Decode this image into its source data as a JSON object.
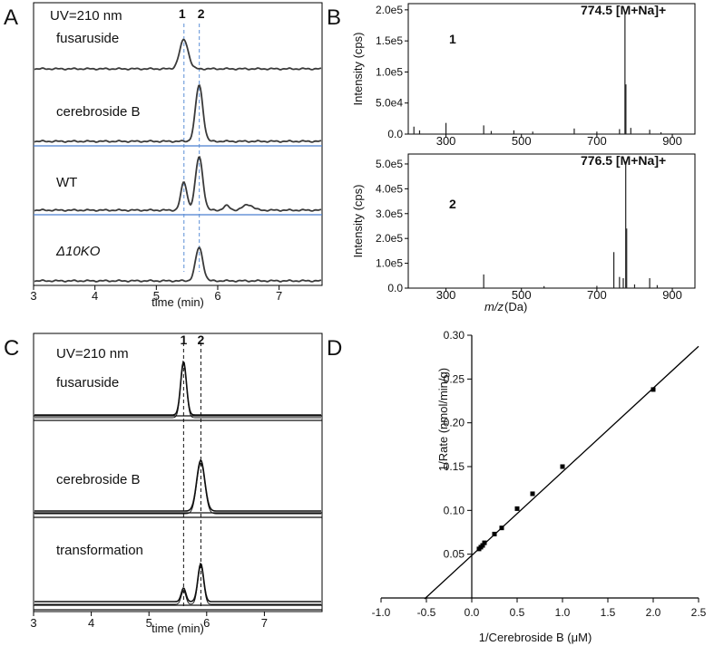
{
  "panels": {
    "A": {
      "label": "A",
      "header": "UV=210 nm",
      "peak_labels": [
        "1",
        "2"
      ],
      "peak_times": [
        5.45,
        5.7
      ],
      "traces": [
        {
          "name": "fusaruside",
          "italic": false,
          "peaks": [
            {
              "t": 5.45,
              "h": 0.85,
              "w": 0.07
            }
          ]
        },
        {
          "name": "cerebroside B",
          "italic": false,
          "peaks": [
            {
              "t": 5.7,
              "h": 1.0,
              "w": 0.06
            }
          ]
        },
        {
          "name": "WT",
          "italic": false,
          "peaks": [
            {
              "t": 5.45,
              "h": 0.5,
              "w": 0.05
            },
            {
              "t": 5.7,
              "h": 0.95,
              "w": 0.06
            },
            {
              "t": 6.15,
              "h": 0.08,
              "w": 0.05
            },
            {
              "t": 6.5,
              "h": 0.1,
              "w": 0.08
            }
          ]
        },
        {
          "name": "Δ10KO",
          "italic": true,
          "peaks": [
            {
              "t": 5.7,
              "h": 0.8,
              "w": 0.06
            }
          ]
        }
      ],
      "x_ticks": [
        "3",
        "4",
        "5",
        "6",
        "7"
      ],
      "xlim": [
        3,
        7.7
      ],
      "xlabel": "time (min)"
    },
    "B": {
      "label": "B",
      "spectra": [
        {
          "id": "1",
          "annotation": "774.5 [M+Na]+",
          "ylabel": "Intensity (cps)",
          "y_ticks": [
            "0.0",
            "5.0e4",
            "1.0e5",
            "1.5e5",
            "2.0e5"
          ],
          "ylim": [
            0,
            210000
          ],
          "peaks": [
            [
              215,
              12000
            ],
            [
              230,
              6000
            ],
            [
              300,
              18000
            ],
            [
              400,
              14000
            ],
            [
              420,
              5000
            ],
            [
              480,
              6000
            ],
            [
              530,
              4000
            ],
            [
              640,
              9000
            ],
            [
              700,
              4000
            ],
            [
              760,
              8000
            ],
            [
              774.5,
              195000
            ],
            [
              777,
              80000
            ],
            [
              790,
              10000
            ],
            [
              840,
              7000
            ],
            [
              870,
              3000
            ]
          ]
        },
        {
          "id": "2",
          "annotation": "776.5 [M+Na]+",
          "ylabel": "Intensity (cps)",
          "y_ticks": [
            "0.0",
            "1.0e5",
            "2.0e5",
            "3.0e5",
            "4.0e5",
            "5.0e5"
          ],
          "ylim": [
            0,
            540000
          ],
          "peaks": [
            [
              400,
              55000
            ],
            [
              560,
              8000
            ],
            [
              700,
              9000
            ],
            [
              745,
              145000
            ],
            [
              760,
              45000
            ],
            [
              770,
              40000
            ],
            [
              776.5,
              510000
            ],
            [
              779,
              240000
            ],
            [
              800,
              15000
            ],
            [
              840,
              40000
            ],
            [
              860,
              12000
            ]
          ]
        }
      ],
      "x_ticks": [
        "300",
        "500",
        "700",
        "900"
      ],
      "xlim": [
        200,
        960
      ],
      "xlabel_italic": "m/z",
      "xlabel_unit": " (Da)"
    },
    "C": {
      "label": "C",
      "header": "UV=210 nm",
      "peak_labels": [
        "1",
        "2"
      ],
      "peak_times": [
        5.6,
        5.9
      ],
      "traces": [
        {
          "name": "fusaruside",
          "peaks": [
            {
              "t": 5.6,
              "h": 0.95,
              "w": 0.05
            }
          ]
        },
        {
          "name": "cerebroside B",
          "peaks": [
            {
              "t": 5.9,
              "h": 0.8,
              "w": 0.07
            }
          ]
        },
        {
          "name": "transformation",
          "peaks": [
            {
              "t": 5.6,
              "h": 0.25,
              "w": 0.04
            },
            {
              "t": 5.9,
              "h": 0.7,
              "w": 0.05
            }
          ]
        }
      ],
      "x_ticks": [
        "3",
        "4",
        "5",
        "6",
        "7"
      ],
      "xlim": [
        3,
        8
      ],
      "xlabel": "time (min)"
    },
    "D": {
      "label": "D",
      "ylabel": "1/Rate (nmol/min/g)",
      "xlabel_pre": "1/Cerebroside B (",
      "xlabel_unit": "μM",
      "xlabel_post": ")",
      "x_ticks": [
        "-1.0",
        "-0.5",
        "0.0",
        "0.5",
        "1.0",
        "1.5",
        "2.0",
        "2.5"
      ],
      "y_ticks": [
        "0.05",
        "0.10",
        "0.15",
        "0.20",
        "0.25",
        "0.30"
      ],
      "xlim": [
        -1.0,
        2.5
      ],
      "ylim": [
        0.0,
        0.3
      ],
      "points": [
        [
          0.08,
          0.056
        ],
        [
          0.1,
          0.058
        ],
        [
          0.12,
          0.06
        ],
        [
          0.14,
          0.063
        ],
        [
          0.25,
          0.073
        ],
        [
          0.33,
          0.08
        ],
        [
          0.5,
          0.102
        ],
        [
          0.67,
          0.119
        ],
        [
          1.0,
          0.15
        ],
        [
          2.0,
          0.238
        ]
      ],
      "fit": {
        "slope": 0.0955,
        "intercept": 0.0486
      }
    }
  },
  "colors": {
    "trace": "#3a3a3a",
    "baseline_blue": "#4a7fd0",
    "dashed_blue": "#5b8fd6",
    "axis": "#000000"
  }
}
